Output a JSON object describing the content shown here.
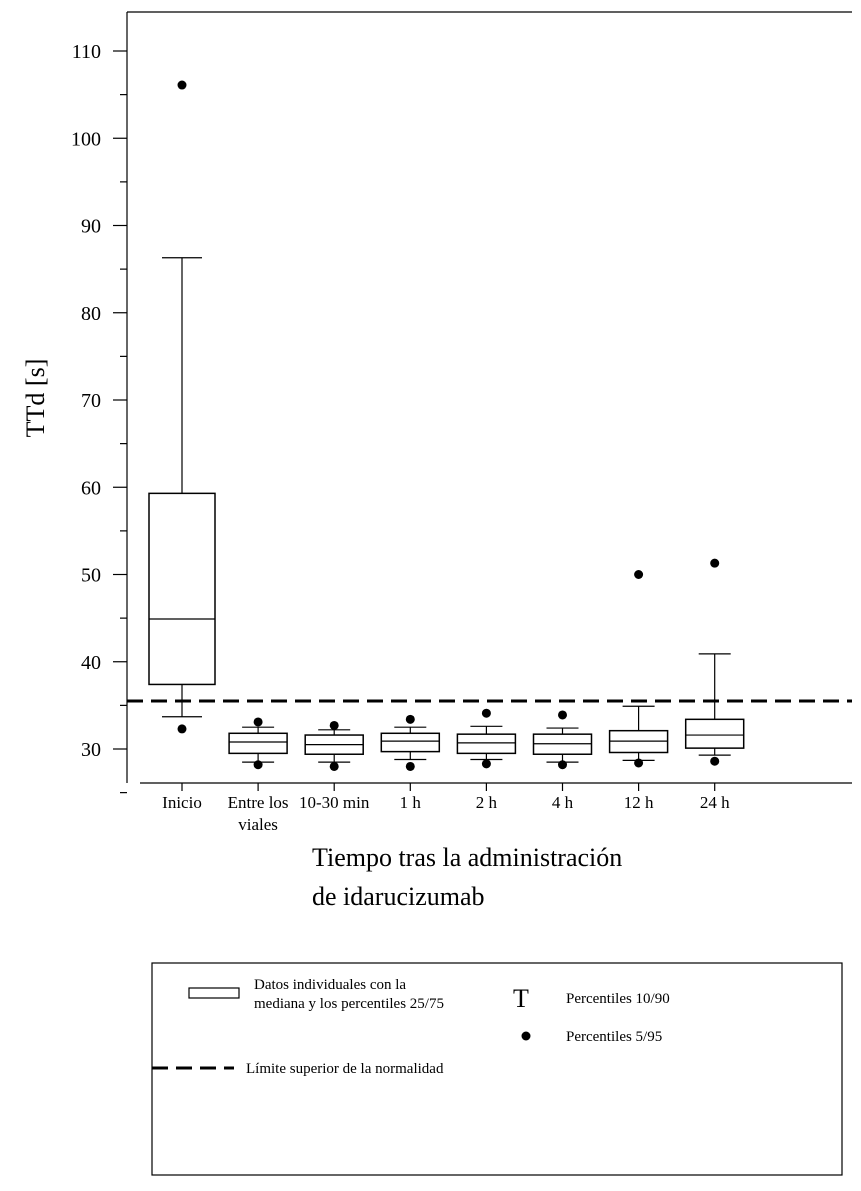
{
  "chart_data": {
    "type": "box",
    "ylabel": "TTd [s]",
    "xlabel": [
      "Tiempo tras la administración",
      "de idarucizumab"
    ],
    "ylim": [
      25,
      113
    ],
    "yticks": [
      30,
      40,
      50,
      60,
      70,
      80,
      90,
      100,
      110
    ],
    "categories": [
      [
        "Inicio"
      ],
      [
        "Entre los",
        "viales"
      ],
      [
        "10-30 min"
      ],
      [
        "1 h"
      ],
      [
        "2 h"
      ],
      [
        "4 h"
      ],
      [
        "12 h"
      ],
      [
        "24 h"
      ]
    ],
    "boxes": [
      {
        "p5": 32.3,
        "p10": 33.7,
        "q1": 37.4,
        "median": 44.9,
        "q3": 59.3,
        "p90": 86.3,
        "p95": 106.1
      },
      {
        "p5": 28.2,
        "p10": 28.5,
        "q1": 29.5,
        "median": 30.8,
        "q3": 31.8,
        "p90": 32.5,
        "p95": 33.1
      },
      {
        "p5": 28.0,
        "p10": 28.5,
        "q1": 29.4,
        "median": 30.5,
        "q3": 31.6,
        "p90": 32.2,
        "p95": 32.7
      },
      {
        "p5": 28.0,
        "p10": 28.8,
        "q1": 29.7,
        "median": 30.9,
        "q3": 31.8,
        "p90": 32.5,
        "p95": 33.4
      },
      {
        "p5": 28.3,
        "p10": 28.8,
        "q1": 29.5,
        "median": 30.7,
        "q3": 31.7,
        "p90": 32.6,
        "p95": 34.1
      },
      {
        "p5": 28.2,
        "p10": 28.5,
        "q1": 29.4,
        "median": 30.6,
        "q3": 31.7,
        "p90": 32.4,
        "p95": 33.9
      },
      {
        "p5": 28.4,
        "p10": 28.7,
        "q1": 29.6,
        "median": 30.9,
        "q3": 32.1,
        "p90": 34.9,
        "p95": 50.0
      },
      {
        "p5": 28.6,
        "p10": 29.3,
        "q1": 30.1,
        "median": 31.6,
        "q3": 33.4,
        "p90": 40.9,
        "p95": 51.3
      }
    ],
    "reference_line": {
      "y": 35.5,
      "style": "dashed"
    },
    "legend": {
      "box": [
        "Datos individuales con la",
        "mediana y los percentiles 25/75"
      ],
      "whisker_symbol": "T",
      "whisker": "Percentiles 10/90",
      "dot": "Percentiles 5/95",
      "dashed": "Límite superior de la normalidad"
    }
  }
}
